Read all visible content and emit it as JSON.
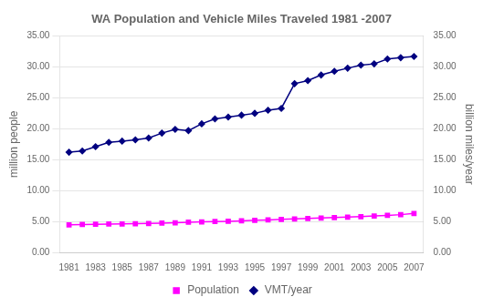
{
  "chart_data": {
    "type": "line",
    "title": "WA Population and Vehicle Miles Traveled 1981 -2007",
    "x": [
      1981,
      1982,
      1983,
      1984,
      1985,
      1986,
      1987,
      1988,
      1989,
      1990,
      1991,
      1992,
      1993,
      1994,
      1995,
      1996,
      1997,
      1998,
      1999,
      2000,
      2001,
      2002,
      2003,
      2004,
      2005,
      2006,
      2007
    ],
    "series": [
      {
        "name": "Population",
        "color": "#FF00FF",
        "marker": "square",
        "values": [
          4.45,
          4.5,
          4.55,
          4.58,
          4.6,
          4.63,
          4.67,
          4.72,
          4.78,
          4.87,
          4.93,
          4.98,
          5.03,
          5.1,
          5.18,
          5.25,
          5.33,
          5.4,
          5.48,
          5.55,
          5.63,
          5.7,
          5.78,
          5.88,
          5.98,
          6.1,
          6.3
        ]
      },
      {
        "name": "VMT/year",
        "color": "#000080",
        "marker": "diamond",
        "axis": "y2",
        "values": [
          16.2,
          16.4,
          17.1,
          17.8,
          18.0,
          18.2,
          18.5,
          19.3,
          19.9,
          19.7,
          20.8,
          21.6,
          21.9,
          22.2,
          22.5,
          23.0,
          23.3,
          27.3,
          27.8,
          28.7,
          29.3,
          29.8,
          30.3,
          30.5,
          31.3,
          31.5,
          31.7
        ]
      }
    ],
    "xlim": [
      1980.3,
      2007.7
    ],
    "xticks": [
      1981,
      1983,
      1985,
      1987,
      1989,
      1991,
      1993,
      1995,
      1997,
      1999,
      2001,
      2003,
      2005,
      2007
    ],
    "ylim": [
      0,
      35
    ],
    "yticks": [
      {
        "value": 0,
        "label": "0.00"
      },
      {
        "value": 5,
        "label": "5.00"
      },
      {
        "value": 10,
        "label": "10.00"
      },
      {
        "value": 15,
        "label": "15.00"
      },
      {
        "value": 20,
        "label": "20.00"
      },
      {
        "value": 25,
        "label": "25.00"
      },
      {
        "value": 30,
        "label": "30.00"
      },
      {
        "value": 35,
        "label": "35.00"
      }
    ],
    "y2lim": [
      0,
      35
    ],
    "y2ticks": [
      {
        "value": 0,
        "label": "0.00"
      },
      {
        "value": 5,
        "label": "5.00"
      },
      {
        "value": 10,
        "label": "10.00"
      },
      {
        "value": 15,
        "label": "15.00"
      },
      {
        "value": 20,
        "label": "20.00"
      },
      {
        "value": 25,
        "label": "25.00"
      },
      {
        "value": 30,
        "label": "30.00"
      },
      {
        "value": 35,
        "label": "35.00"
      }
    ],
    "ylabel": "million people",
    "y2label": "billion miles/year",
    "grid": "y",
    "legend": "bottom"
  }
}
